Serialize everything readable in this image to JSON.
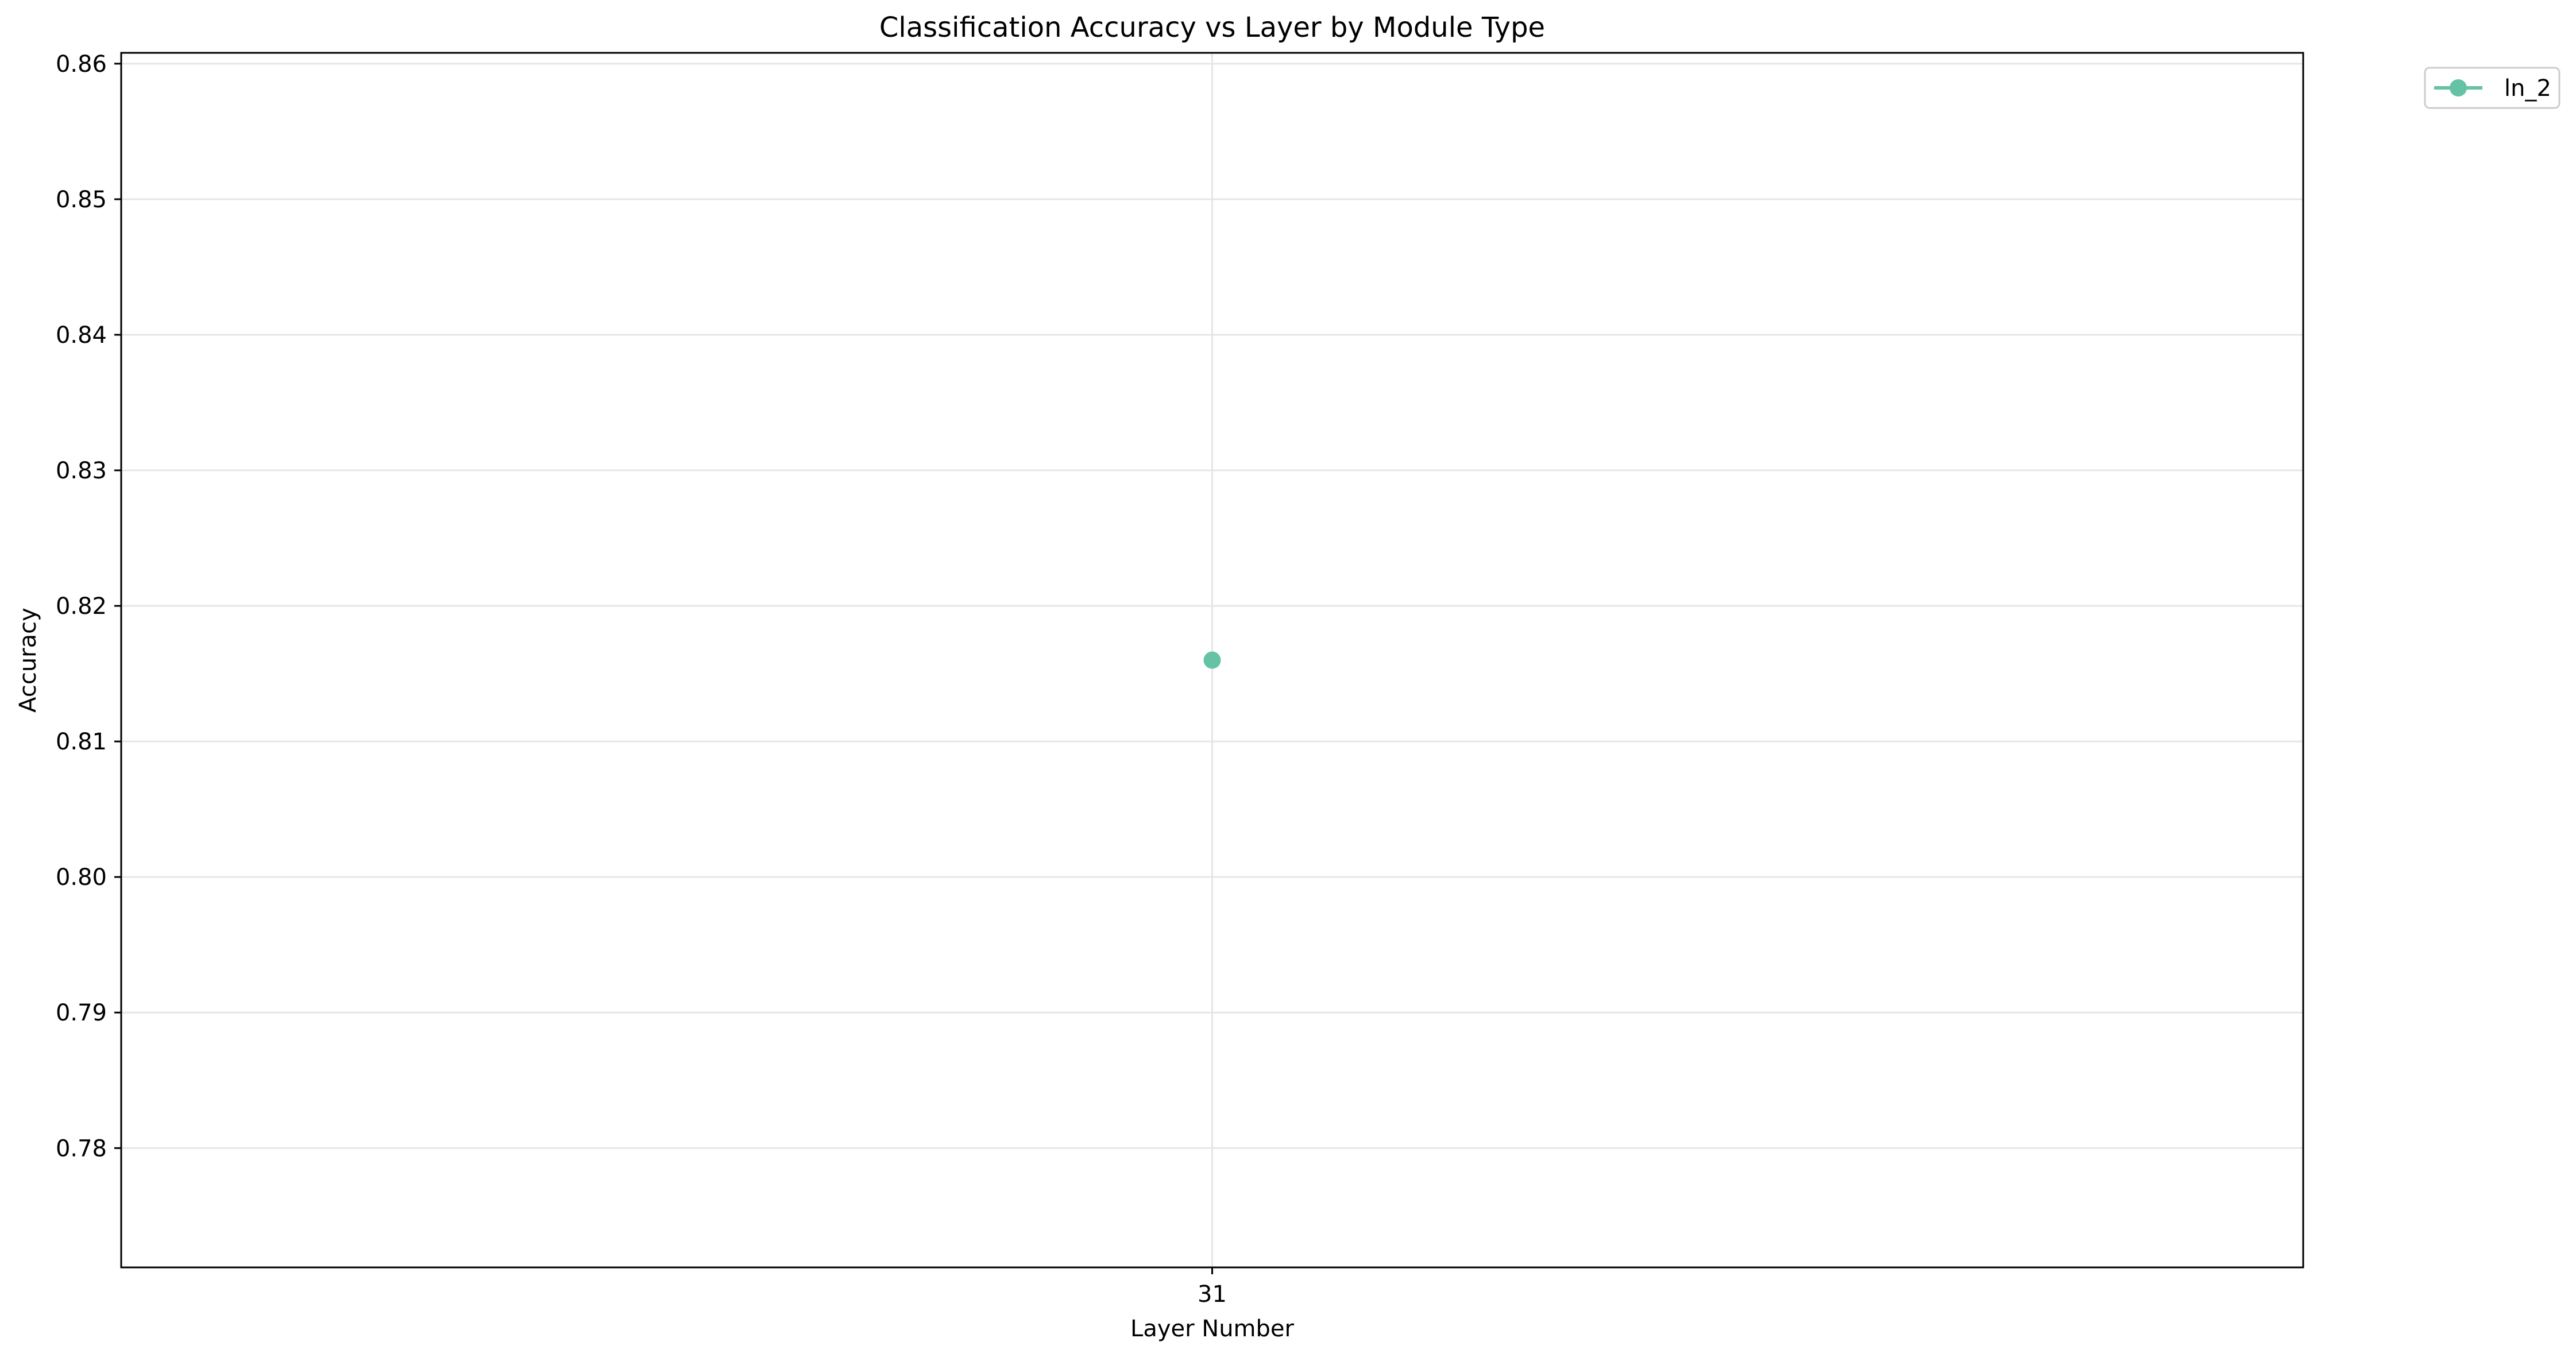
{
  "chart_data": {
    "type": "line",
    "title": "Classification Accuracy vs Layer by Module Type",
    "xlabel": "Layer Number",
    "ylabel": "Accuracy",
    "x_ticks": [
      "31"
    ],
    "y_ticks": [
      "0.78",
      "0.79",
      "0.80",
      "0.81",
      "0.82",
      "0.83",
      "0.84",
      "0.85",
      "0.86"
    ],
    "ylim": [
      0.7712,
      0.8608
    ],
    "grid": true,
    "legend_position": "outside-top-right",
    "series": [
      {
        "name": "ln_2",
        "color": "#66c2a5",
        "points": [
          {
            "x": "31",
            "y": 0.816
          }
        ]
      }
    ]
  }
}
